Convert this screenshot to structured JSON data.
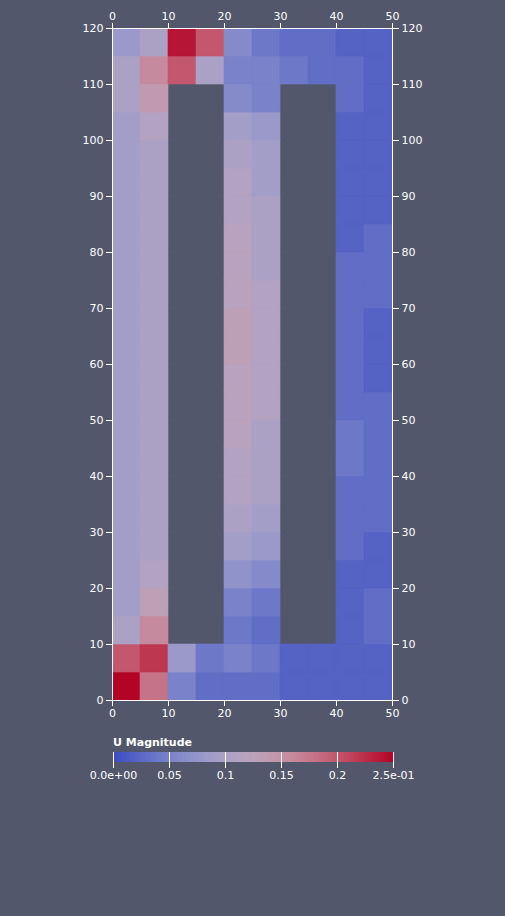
{
  "chart_data": {
    "type": "heatmap",
    "x_bins": [
      0,
      5,
      10,
      15,
      20,
      25,
      30,
      35,
      40,
      45,
      50
    ],
    "y_bins": [
      0,
      5,
      10,
      15,
      20,
      25,
      30,
      35,
      40,
      45,
      50,
      55,
      60,
      65,
      70,
      75,
      80,
      85,
      90,
      95,
      100,
      105,
      110,
      115,
      120
    ],
    "values": [
      [
        0.25,
        0.18,
        0.05,
        0.03,
        0.03,
        0.03,
        0.02,
        0.02,
        0.02,
        0.02
      ],
      [
        0.2,
        0.22,
        0.08,
        0.04,
        0.05,
        0.04,
        0.02,
        0.02,
        0.02,
        0.02
      ],
      [
        0.1,
        0.16,
        null,
        null,
        0.04,
        0.03,
        null,
        null,
        0.02,
        0.03
      ],
      [
        0.09,
        0.13,
        null,
        null,
        0.05,
        0.04,
        null,
        null,
        0.02,
        0.03
      ],
      [
        0.09,
        0.11,
        null,
        null,
        0.07,
        0.06,
        null,
        null,
        0.02,
        0.02
      ],
      [
        0.09,
        0.1,
        null,
        null,
        0.09,
        0.08,
        null,
        null,
        0.03,
        0.02
      ],
      [
        0.09,
        0.1,
        null,
        null,
        0.1,
        0.09,
        null,
        null,
        0.03,
        0.03
      ],
      [
        0.09,
        0.1,
        null,
        null,
        0.11,
        0.1,
        null,
        null,
        0.03,
        0.03
      ],
      [
        0.09,
        0.1,
        null,
        null,
        0.11,
        0.1,
        null,
        null,
        0.04,
        0.03
      ],
      [
        0.09,
        0.1,
        null,
        null,
        0.12,
        0.1,
        null,
        null,
        0.04,
        0.03
      ],
      [
        0.09,
        0.1,
        null,
        null,
        0.12,
        0.11,
        null,
        null,
        0.03,
        0.03
      ],
      [
        0.09,
        0.1,
        null,
        null,
        0.12,
        0.11,
        null,
        null,
        0.03,
        0.02
      ],
      [
        0.09,
        0.1,
        null,
        null,
        0.13,
        0.11,
        null,
        null,
        0.03,
        0.02
      ],
      [
        0.09,
        0.1,
        null,
        null,
        0.13,
        0.11,
        null,
        null,
        0.03,
        0.02
      ],
      [
        0.09,
        0.1,
        null,
        null,
        0.12,
        0.11,
        null,
        null,
        0.03,
        0.03
      ],
      [
        0.09,
        0.1,
        null,
        null,
        0.12,
        0.1,
        null,
        null,
        0.03,
        0.03
      ],
      [
        0.09,
        0.1,
        null,
        null,
        0.12,
        0.1,
        null,
        null,
        0.02,
        0.03
      ],
      [
        0.09,
        0.1,
        null,
        null,
        0.11,
        0.1,
        null,
        null,
        0.02,
        0.02
      ],
      [
        0.09,
        0.1,
        null,
        null,
        0.11,
        0.09,
        null,
        null,
        0.02,
        0.02
      ],
      [
        0.09,
        0.1,
        null,
        null,
        0.1,
        0.09,
        null,
        null,
        0.02,
        0.02
      ],
      [
        0.09,
        0.11,
        null,
        null,
        0.09,
        0.08,
        null,
        null,
        0.02,
        0.02
      ],
      [
        0.1,
        0.14,
        null,
        null,
        0.06,
        0.05,
        null,
        null,
        0.03,
        0.02
      ],
      [
        0.1,
        0.16,
        0.2,
        0.1,
        0.05,
        0.05,
        0.04,
        0.03,
        0.03,
        0.02
      ],
      [
        0.08,
        0.1,
        0.24,
        0.2,
        0.06,
        0.04,
        0.03,
        0.03,
        0.02,
        0.02
      ]
    ],
    "xlim": [
      0,
      50
    ],
    "xticks": [
      0,
      10,
      20,
      30,
      40,
      50
    ],
    "ylim": [
      0,
      120
    ],
    "yticks": [
      0,
      10,
      20,
      30,
      40,
      50,
      60,
      70,
      80,
      90,
      100,
      110,
      120
    ],
    "colorbar": {
      "title": "U Magnitude",
      "range": [
        0,
        0.25
      ],
      "ticks": [
        {
          "value": 0,
          "label": "0.0e+00"
        },
        0.05,
        0.1,
        0.15,
        0.2,
        {
          "value": 0.25,
          "label": "2.5e-01"
        }
      ]
    }
  }
}
